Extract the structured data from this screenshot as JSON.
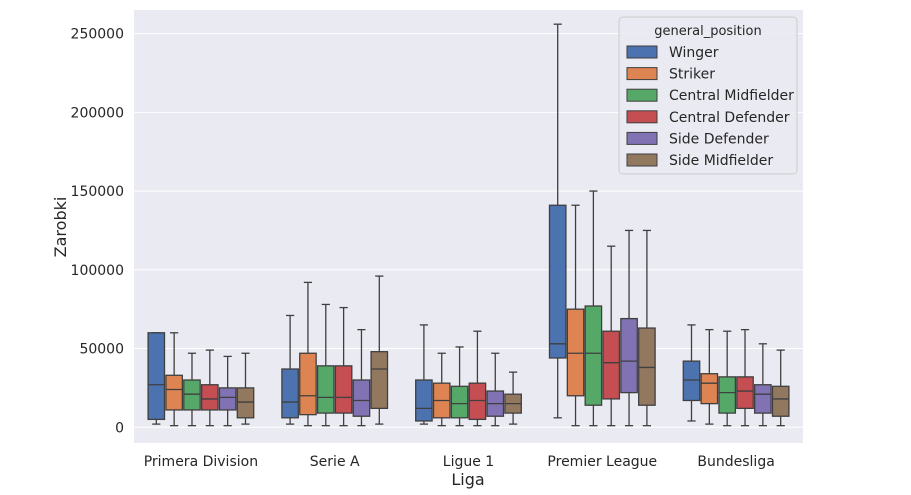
{
  "chart_data": {
    "type": "box",
    "xlabel": "Liga",
    "ylabel": "Zarobki",
    "ylim": [
      -10000,
      265000
    ],
    "yticks": [
      0,
      50000,
      100000,
      150000,
      200000,
      250000
    ],
    "ytick_labels": [
      "0",
      "50000",
      "100000",
      "150000",
      "200000",
      "250000"
    ],
    "grid": true,
    "categories": [
      "Primera Division",
      "Serie A",
      "Ligue 1",
      "Premier League",
      "Bundesliga"
    ],
    "legend": {
      "title": "general_position",
      "position": "top-right"
    },
    "series": [
      {
        "name": "Winger",
        "color": "#4c72b0",
        "boxes": [
          {
            "whislo": 2000,
            "q1": 5000,
            "med": 27000,
            "q3": 60000,
            "whishi": 60000
          },
          {
            "whislo": 2000,
            "q1": 6000,
            "med": 16000,
            "q3": 37000,
            "whishi": 71000
          },
          {
            "whislo": 2000,
            "q1": 4000,
            "med": 12000,
            "q3": 30000,
            "whishi": 65000
          },
          {
            "whislo": 6000,
            "q1": 44000,
            "med": 53000,
            "q3": 141000,
            "whishi": 256000
          },
          {
            "whislo": 4000,
            "q1": 17000,
            "med": 30000,
            "q3": 42000,
            "whishi": 65000
          }
        ]
      },
      {
        "name": "Striker",
        "color": "#dd8452",
        "boxes": [
          {
            "whislo": 1000,
            "q1": 11000,
            "med": 24000,
            "q3": 33000,
            "whishi": 60000
          },
          {
            "whislo": 1000,
            "q1": 8000,
            "med": 20000,
            "q3": 47000,
            "whishi": 92000
          },
          {
            "whislo": 1000,
            "q1": 6000,
            "med": 17000,
            "q3": 28000,
            "whishi": 47000
          },
          {
            "whislo": 1000,
            "q1": 20000,
            "med": 47000,
            "q3": 75000,
            "whishi": 141000
          },
          {
            "whislo": 2000,
            "q1": 15000,
            "med": 28000,
            "q3": 34000,
            "whishi": 62000
          }
        ]
      },
      {
        "name": "Central Midfielder",
        "color": "#55a868",
        "boxes": [
          {
            "whislo": 1000,
            "q1": 11000,
            "med": 21000,
            "q3": 30000,
            "whishi": 47000
          },
          {
            "whislo": 1000,
            "q1": 9000,
            "med": 19000,
            "q3": 39000,
            "whishi": 78000
          },
          {
            "whislo": 1000,
            "q1": 6000,
            "med": 15000,
            "q3": 26000,
            "whishi": 51000
          },
          {
            "whislo": 1000,
            "q1": 14000,
            "med": 47000,
            "q3": 77000,
            "whishi": 150000
          },
          {
            "whislo": 1000,
            "q1": 9000,
            "med": 22000,
            "q3": 32000,
            "whishi": 61000
          }
        ]
      },
      {
        "name": "Central Defender",
        "color": "#c44e52",
        "boxes": [
          {
            "whislo": 1000,
            "q1": 11000,
            "med": 18000,
            "q3": 27000,
            "whishi": 49000
          },
          {
            "whislo": 1000,
            "q1": 9000,
            "med": 19000,
            "q3": 39000,
            "whishi": 76000
          },
          {
            "whislo": 1000,
            "q1": 5000,
            "med": 17000,
            "q3": 28000,
            "whishi": 61000
          },
          {
            "whislo": 1000,
            "q1": 18000,
            "med": 41000,
            "q3": 61000,
            "whishi": 115000
          },
          {
            "whislo": 1000,
            "q1": 12000,
            "med": 23000,
            "q3": 32000,
            "whishi": 62000
          }
        ]
      },
      {
        "name": "Side Defender",
        "color": "#8172b3",
        "boxes": [
          {
            "whislo": 1000,
            "q1": 11000,
            "med": 19000,
            "q3": 25000,
            "whishi": 45000
          },
          {
            "whislo": 1000,
            "q1": 7000,
            "med": 17000,
            "q3": 30000,
            "whishi": 62000
          },
          {
            "whislo": 1000,
            "q1": 7000,
            "med": 15000,
            "q3": 23000,
            "whishi": 47000
          },
          {
            "whislo": 1000,
            "q1": 22000,
            "med": 42000,
            "q3": 69000,
            "whishi": 125000
          },
          {
            "whislo": 1000,
            "q1": 9000,
            "med": 21000,
            "q3": 27000,
            "whishi": 53000
          }
        ]
      },
      {
        "name": "Side Midfielder",
        "color": "#937860",
        "boxes": [
          {
            "whislo": 2000,
            "q1": 6000,
            "med": 16000,
            "q3": 25000,
            "whishi": 47000
          },
          {
            "whislo": 2000,
            "q1": 12000,
            "med": 37000,
            "q3": 48000,
            "whishi": 96000
          },
          {
            "whislo": 2000,
            "q1": 9000,
            "med": 15000,
            "q3": 21000,
            "whishi": 35000
          },
          {
            "whislo": 1000,
            "q1": 14000,
            "med": 38000,
            "q3": 63000,
            "whishi": 125000
          },
          {
            "whislo": 1000,
            "q1": 7000,
            "med": 18000,
            "q3": 26000,
            "whishi": 49000
          }
        ]
      }
    ]
  }
}
